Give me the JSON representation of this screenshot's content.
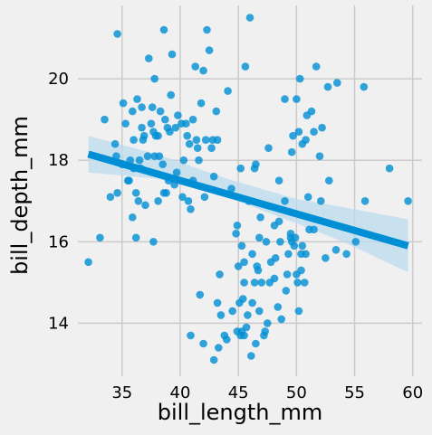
{
  "chart_data": {
    "type": "scatter",
    "title": "",
    "xlabel": "bill_length_mm",
    "ylabel": "bill_depth_mm",
    "xlim": [
      31.2,
      60.8
    ],
    "ylim": [
      12.7,
      21.8
    ],
    "xticks": [
      35,
      40,
      45,
      50,
      55,
      60
    ],
    "yticks": [
      14,
      16,
      18,
      20
    ],
    "grid": true,
    "legend": "none",
    "colors": {
      "background": "#f0f0f0",
      "grid": "#cbcbcb",
      "points": "#008fd5",
      "regression_line": "#008fd5",
      "confidence_band": "#bcdcef"
    },
    "regression": {
      "x": [
        32.1,
        59.6
      ],
      "y": [
        18.15,
        15.9
      ]
    },
    "confidence_band": {
      "x": [
        32.1,
        38,
        44,
        50,
        54,
        59.6
      ],
      "upper": [
        18.6,
        18.15,
        17.55,
        17.05,
        16.85,
        16.55
      ],
      "lower": [
        17.7,
        17.55,
        17.1,
        16.45,
        16.0,
        15.25
      ]
    },
    "points": [
      [
        32.1,
        15.5
      ],
      [
        33.1,
        16.1
      ],
      [
        33.5,
        19.0
      ],
      [
        34.0,
        17.1
      ],
      [
        34.4,
        18.4
      ],
      [
        34.5,
        18.1
      ],
      [
        34.6,
        21.1
      ],
      [
        34.6,
        17.2
      ],
      [
        35.0,
        17.9
      ],
      [
        35.1,
        19.4
      ],
      [
        35.3,
        18.9
      ],
      [
        35.5,
        17.5
      ],
      [
        35.6,
        17.5
      ],
      [
        35.7,
        18.0
      ],
      [
        35.9,
        19.2
      ],
      [
        35.9,
        16.6
      ],
      [
        36.0,
        18.5
      ],
      [
        36.0,
        17.8
      ],
      [
        36.2,
        17.2
      ],
      [
        36.2,
        16.1
      ],
      [
        36.3,
        19.5
      ],
      [
        36.4,
        17.0
      ],
      [
        36.5,
        18.0
      ],
      [
        36.6,
        17.8
      ],
      [
        36.7,
        19.3
      ],
      [
        36.7,
        18.8
      ],
      [
        36.8,
        18.5
      ],
      [
        36.9,
        18.6
      ],
      [
        37.0,
        16.9
      ],
      [
        37.2,
        18.1
      ],
      [
        37.3,
        20.5
      ],
      [
        37.5,
        18.9
      ],
      [
        37.6,
        19.3
      ],
      [
        37.7,
        18.7
      ],
      [
        37.7,
        16.0
      ],
      [
        37.8,
        20.0
      ],
      [
        37.8,
        18.1
      ],
      [
        37.9,
        18.6
      ],
      [
        38.1,
        18.6
      ],
      [
        38.1,
        17.0
      ],
      [
        38.2,
        18.1
      ],
      [
        38.3,
        19.2
      ],
      [
        38.5,
        17.9
      ],
      [
        38.6,
        21.2
      ],
      [
        38.6,
        17.2
      ],
      [
        38.7,
        19.0
      ],
      [
        38.8,
        17.2
      ],
      [
        38.9,
        18.8
      ],
      [
        39.0,
        17.5
      ],
      [
        39.1,
        18.7
      ],
      [
        39.2,
        19.6
      ],
      [
        39.3,
        20.6
      ],
      [
        39.5,
        17.4
      ],
      [
        39.6,
        18.8
      ],
      [
        39.7,
        17.7
      ],
      [
        39.8,
        19.1
      ],
      [
        40.1,
        18.9
      ],
      [
        40.2,
        17.1
      ],
      [
        40.3,
        18.0
      ],
      [
        40.5,
        18.9
      ],
      [
        40.6,
        18.6
      ],
      [
        40.7,
        17.0
      ],
      [
        40.8,
        18.4
      ],
      [
        40.9,
        16.8
      ],
      [
        41.1,
        19.0
      ],
      [
        41.1,
        17.5
      ],
      [
        41.3,
        20.3
      ],
      [
        41.4,
        18.5
      ],
      [
        41.5,
        18.3
      ],
      [
        41.6,
        18.0
      ],
      [
        41.8,
        19.4
      ],
      [
        42.0,
        20.2
      ],
      [
        42.1,
        17.1
      ],
      [
        42.2,
        18.5
      ],
      [
        42.3,
        21.2
      ],
      [
        42.5,
        20.7
      ],
      [
        42.7,
        18.3
      ],
      [
        42.8,
        18.5
      ],
      [
        42.9,
        17.6
      ],
      [
        43.1,
        19.2
      ],
      [
        43.2,
        18.5
      ],
      [
        44.1,
        19.7
      ],
      [
        45.2,
        17.8
      ],
      [
        45.6,
        20.3
      ],
      [
        46.0,
        21.5
      ],
      [
        46.5,
        17.9
      ],
      [
        47.6,
        18.3
      ],
      [
        48.5,
        17.5
      ],
      [
        50.0,
        19.5
      ],
      [
        50.9,
        19.1
      ],
      [
        52.0,
        18.1
      ],
      [
        53.5,
        19.9
      ],
      [
        55.8,
        19.8
      ],
      [
        58.0,
        17.8
      ],
      [
        49.6,
        18.2
      ],
      [
        51.3,
        19.2
      ],
      [
        51.7,
        20.3
      ],
      [
        52.7,
        19.8
      ],
      [
        50.5,
        18.4
      ],
      [
        50.8,
        18.5
      ],
      [
        49.0,
        19.5
      ],
      [
        50.3,
        20.0
      ],
      [
        49.7,
        18.6
      ],
      [
        51.5,
        18.7
      ],
      [
        52.2,
        18.8
      ],
      [
        50.2,
        18.7
      ],
      [
        46.9,
        16.6
      ],
      [
        48.1,
        16.4
      ],
      [
        49.5,
        16.2
      ],
      [
        50.4,
        15.3
      ],
      [
        52.1,
        17.0
      ],
      [
        54.3,
        15.7
      ],
      [
        55.9,
        17.0
      ],
      [
        59.6,
        17.0
      ],
      [
        40.9,
        13.7
      ],
      [
        42.0,
        13.5
      ],
      [
        42.9,
        13.1
      ],
      [
        43.2,
        14.5
      ],
      [
        43.3,
        13.4
      ],
      [
        43.5,
        14.2
      ],
      [
        43.8,
        13.7
      ],
      [
        44.0,
        13.6
      ],
      [
        44.5,
        14.3
      ],
      [
        44.9,
        13.8
      ],
      [
        45.1,
        14.5
      ],
      [
        45.2,
        13.7
      ],
      [
        45.3,
        13.8
      ],
      [
        45.4,
        14.6
      ],
      [
        45.5,
        13.7
      ],
      [
        45.7,
        13.9
      ],
      [
        45.8,
        14.2
      ],
      [
        46.1,
        13.2
      ],
      [
        46.2,
        14.5
      ],
      [
        46.4,
        15.0
      ],
      [
        46.5,
        13.5
      ],
      [
        46.8,
        14.3
      ],
      [
        47.0,
        15.0
      ],
      [
        47.2,
        13.7
      ],
      [
        47.3,
        13.8
      ],
      [
        47.5,
        14.0
      ],
      [
        47.7,
        15.0
      ],
      [
        48.1,
        15.1
      ],
      [
        48.4,
        14.4
      ],
      [
        48.7,
        14.1
      ],
      [
        49.1,
        14.8
      ],
      [
        49.3,
        15.7
      ],
      [
        49.5,
        16.1
      ],
      [
        49.8,
        15.9
      ],
      [
        50.0,
        15.2
      ],
      [
        50.1,
        15.0
      ],
      [
        50.4,
        15.7
      ],
      [
        50.5,
        15.9
      ],
      [
        50.7,
        15.0
      ],
      [
        50.8,
        15.7
      ],
      [
        51.1,
        16.3
      ],
      [
        52.5,
        15.6
      ],
      [
        53.4,
        15.8
      ],
      [
        55.1,
        16.0
      ],
      [
        45.5,
        15.0
      ],
      [
        46.2,
        15.7
      ],
      [
        46.6,
        15.4
      ],
      [
        47.4,
        16.0
      ],
      [
        48.2,
        15.6
      ],
      [
        48.6,
        16.0
      ],
      [
        49.2,
        15.2
      ],
      [
        49.6,
        16.0
      ],
      [
        50.2,
        14.3
      ],
      [
        51.5,
        16.3
      ],
      [
        44.4,
        17.3
      ],
      [
        44.9,
        16.4
      ],
      [
        45.5,
        15.5
      ],
      [
        45.9,
        17.0
      ],
      [
        46.4,
        17.8
      ],
      [
        48.5,
        16.5
      ],
      [
        49.0,
        17.0
      ],
      [
        49.9,
        16.1
      ],
      [
        51.0,
        17.1
      ],
      [
        52.8,
        17.5
      ],
      [
        45.3,
        15.9
      ],
      [
        47.8,
        15.5
      ],
      [
        43.4,
        15.2
      ],
      [
        41.7,
        14.7
      ],
      [
        46.8,
        16.1
      ],
      [
        46.7,
        15.3
      ],
      [
        45.0,
        15.4
      ],
      [
        44.8,
        16.2
      ]
    ]
  }
}
